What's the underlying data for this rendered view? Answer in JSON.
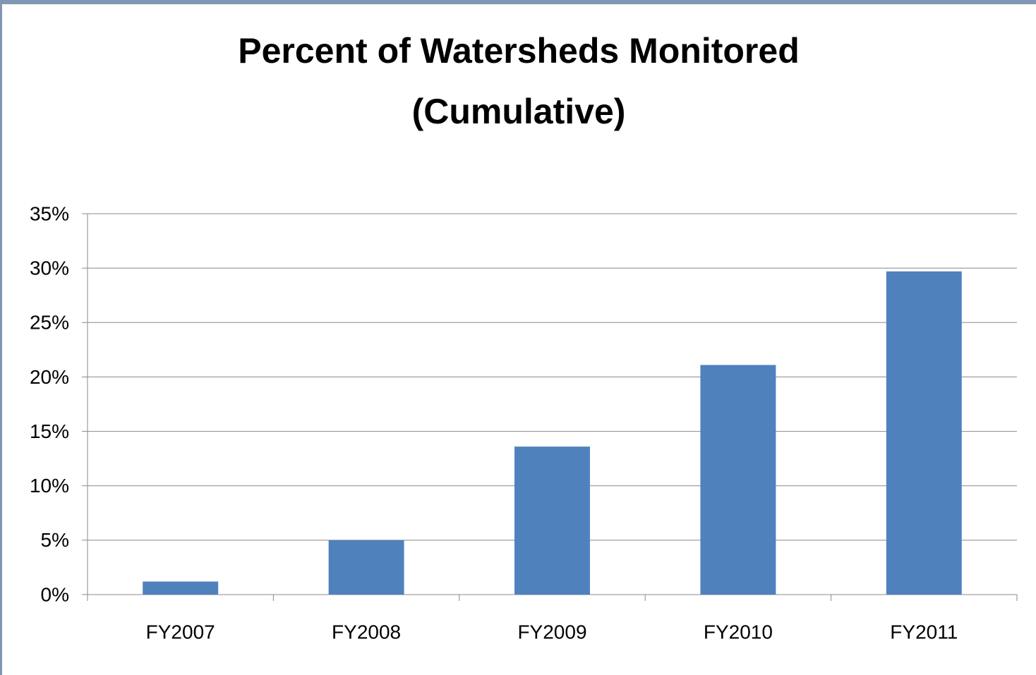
{
  "chart_data": {
    "type": "bar",
    "title": [
      "Percent of Watersheds Monitored",
      "(Cumulative)"
    ],
    "categories": [
      "FY2007",
      "FY2008",
      "FY2009",
      "FY2010",
      "FY2011"
    ],
    "values": [
      1.2,
      5.0,
      13.6,
      21.1,
      29.7
    ],
    "color": "#4f81bd",
    "ylim": [
      0,
      35
    ],
    "yticks": [
      {
        "value": 0,
        "label": "0%"
      },
      {
        "value": 5,
        "label": "5%"
      },
      {
        "value": 10,
        "label": "10%"
      },
      {
        "value": 15,
        "label": "15%"
      },
      {
        "value": 20,
        "label": "20%"
      },
      {
        "value": 25,
        "label": "25%"
      },
      {
        "value": 30,
        "label": "30%"
      },
      {
        "value": 35,
        "label": "35%"
      }
    ],
    "grid": true
  }
}
